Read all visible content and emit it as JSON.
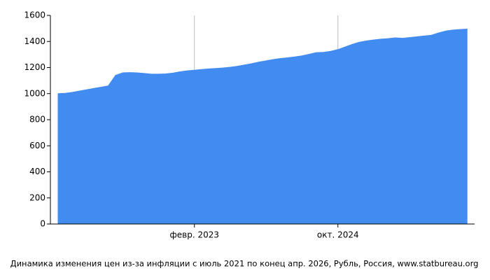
{
  "chart_data": {
    "type": "area",
    "title": "Динамика изменения цен из-за инфляции с июль 2021 по конец апр. 2026, Рубль, Россия, www.statbureau.org",
    "x": [
      "2021-07",
      "2021-08",
      "2021-09",
      "2021-10",
      "2021-11",
      "2021-12",
      "2022-01",
      "2022-02",
      "2022-03",
      "2022-04",
      "2022-05",
      "2022-06",
      "2022-07",
      "2022-08",
      "2022-09",
      "2022-10",
      "2022-11",
      "2022-12",
      "2023-01",
      "2023-02",
      "2023-03",
      "2023-04",
      "2023-05",
      "2023-06",
      "2023-07",
      "2023-08",
      "2023-09",
      "2023-10",
      "2023-11",
      "2023-12",
      "2024-01",
      "2024-02",
      "2024-03",
      "2024-04",
      "2024-05",
      "2024-06",
      "2024-07",
      "2024-08",
      "2024-09",
      "2024-10",
      "2024-11",
      "2024-12",
      "2025-01",
      "2025-02",
      "2025-03",
      "2025-04",
      "2025-05",
      "2025-06",
      "2025-07",
      "2025-08",
      "2025-09",
      "2025-10",
      "2025-11",
      "2025-12",
      "2026-01",
      "2026-02",
      "2026-03",
      "2026-04"
    ],
    "values": [
      1000,
      1003,
      1010,
      1020,
      1030,
      1040,
      1050,
      1060,
      1140,
      1160,
      1162,
      1160,
      1155,
      1150,
      1150,
      1152,
      1158,
      1168,
      1175,
      1180,
      1185,
      1190,
      1193,
      1197,
      1203,
      1210,
      1220,
      1230,
      1242,
      1252,
      1262,
      1270,
      1275,
      1282,
      1290,
      1302,
      1315,
      1317,
      1325,
      1338,
      1358,
      1378,
      1395,
      1405,
      1412,
      1418,
      1422,
      1428,
      1425,
      1430,
      1436,
      1442,
      1448,
      1465,
      1480,
      1488,
      1492,
      1495
    ],
    "color": "#428bf0",
    "ylim": [
      0,
      1600
    ],
    "yticks": [
      0,
      200,
      400,
      600,
      800,
      1000,
      1200,
      1400,
      1600
    ],
    "xticks": [
      {
        "value": "2023-02",
        "label": "февр. 2023"
      },
      {
        "value": "2024-10",
        "label": "окт. 2024"
      }
    ],
    "xgrid": true
  }
}
